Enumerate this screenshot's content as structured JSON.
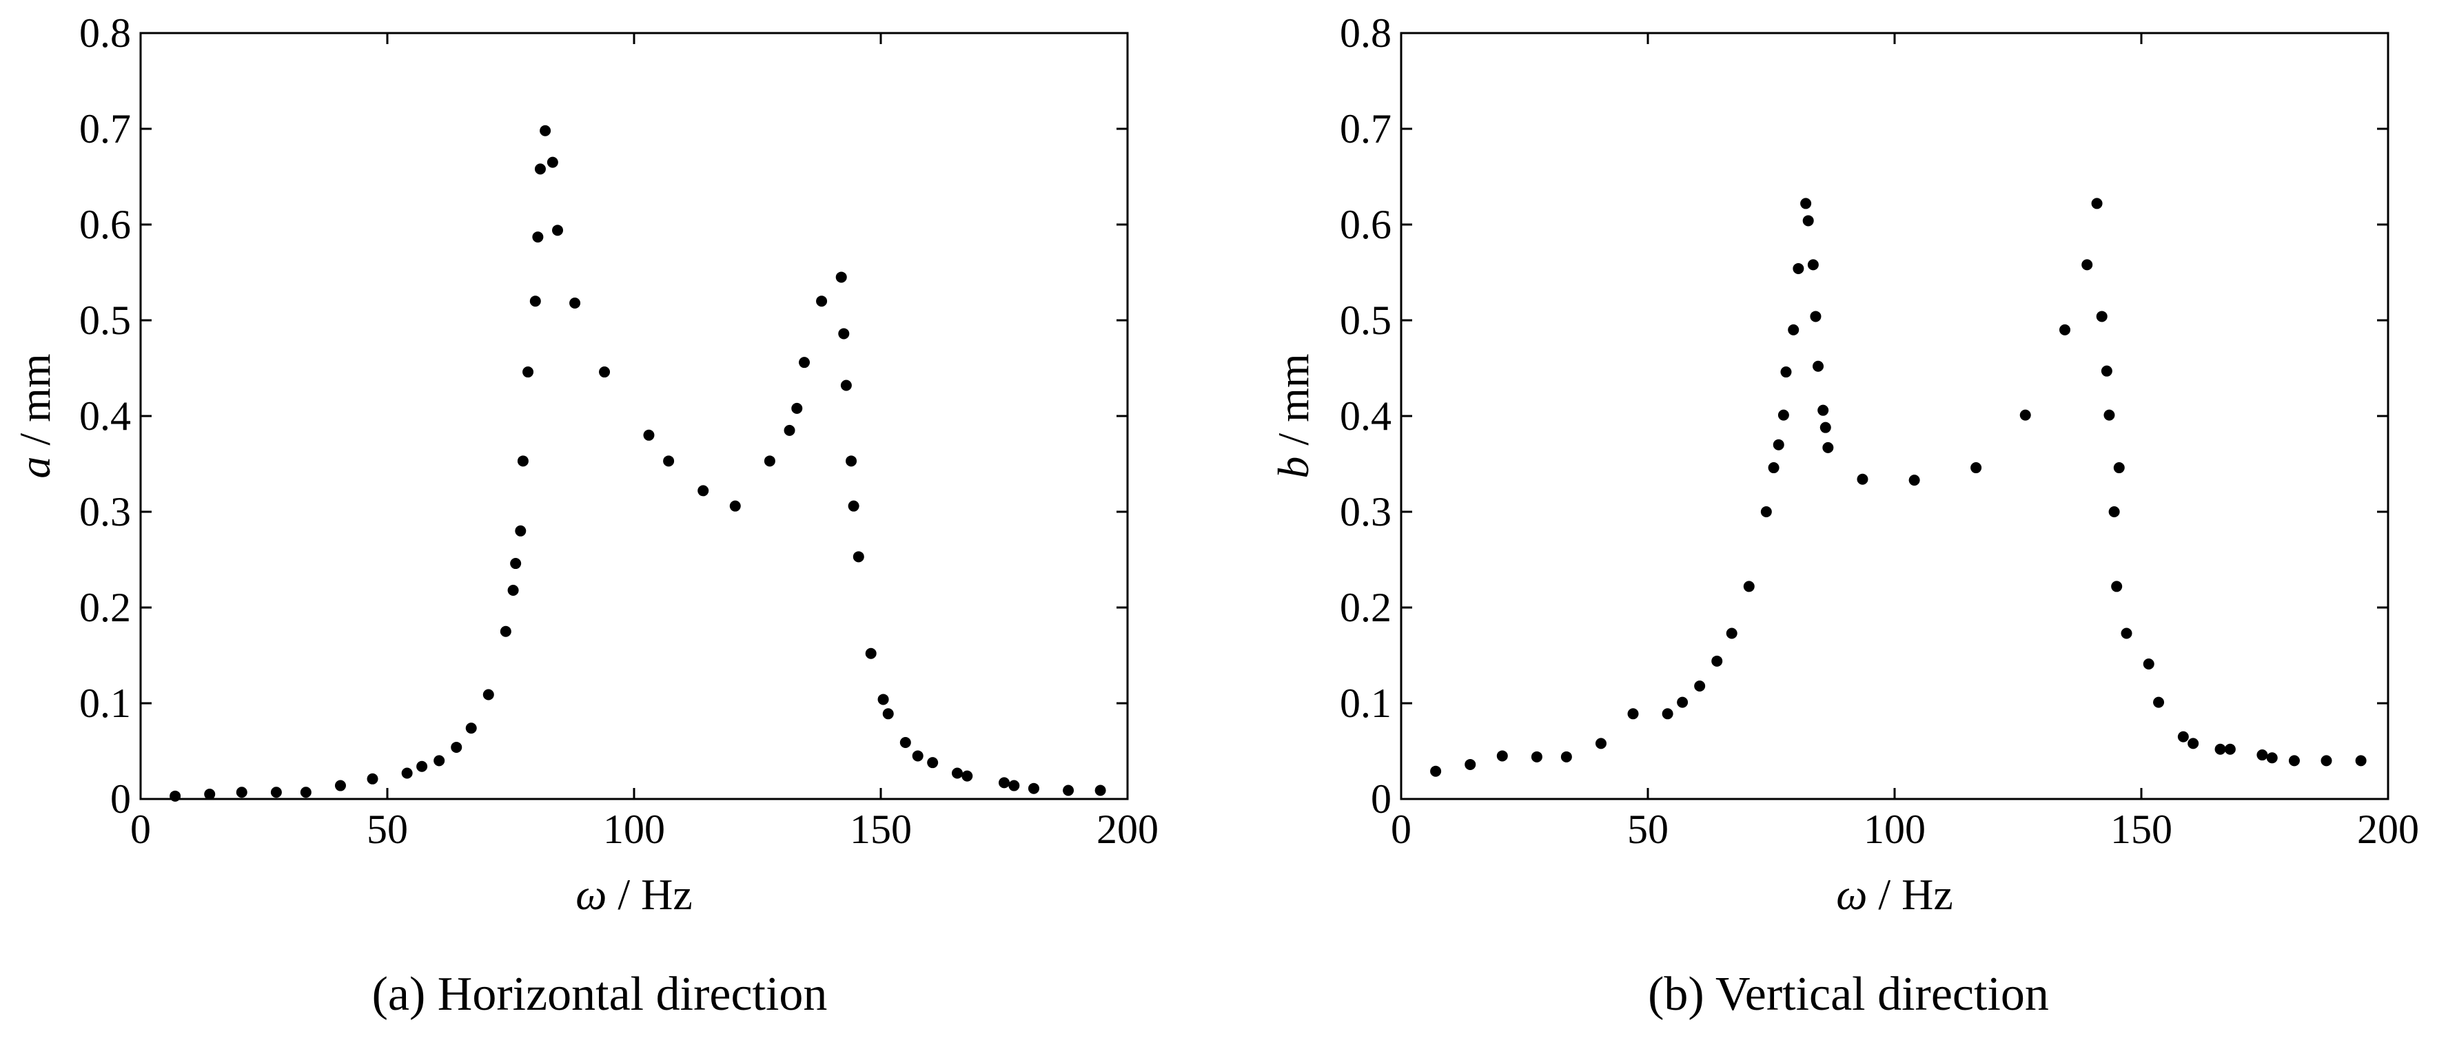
{
  "chart_data": [
    {
      "type": "scatter",
      "panel": "a",
      "caption": "(a) Horizontal direction",
      "xlabel_symbol": "ω",
      "xlabel_unit": " / Hz",
      "ylabel_symbol": "a",
      "ylabel_unit": " / mm",
      "xlim": [
        0,
        200
      ],
      "ylim": [
        0,
        0.8
      ],
      "xticks": [
        0,
        50,
        100,
        150,
        200
      ],
      "xtick_labels": [
        "0",
        "50",
        "100",
        "150",
        "200"
      ],
      "yticks": [
        0,
        0.1,
        0.2,
        0.3,
        0.4,
        0.5,
        0.6,
        0.7,
        0.8
      ],
      "ytick_labels": [
        "0",
        "0.1",
        "0.2",
        "0.3",
        "0.4",
        "0.5",
        "0.6",
        "0.7",
        "0.8"
      ],
      "grid": false,
      "points": [
        [
          7,
          0.003
        ],
        [
          14,
          0.005
        ],
        [
          20.5,
          0.007
        ],
        [
          27.5,
          0.007
        ],
        [
          33.5,
          0.007
        ],
        [
          40.5,
          0.014
        ],
        [
          47,
          0.021
        ],
        [
          54,
          0.027
        ],
        [
          57,
          0.034
        ],
        [
          60.5,
          0.04
        ],
        [
          64,
          0.054
        ],
        [
          67,
          0.074
        ],
        [
          70.5,
          0.109
        ],
        [
          74,
          0.175
        ],
        [
          75.5,
          0.218
        ],
        [
          76,
          0.246
        ],
        [
          77,
          0.28
        ],
        [
          77.5,
          0.353
        ],
        [
          78.5,
          0.446
        ],
        [
          80,
          0.52
        ],
        [
          80.5,
          0.587
        ],
        [
          81,
          0.658
        ],
        [
          82,
          0.698
        ],
        [
          83.5,
          0.665
        ],
        [
          84.5,
          0.594
        ],
        [
          88,
          0.518
        ],
        [
          94,
          0.446
        ],
        [
          103,
          0.38
        ],
        [
          107,
          0.353
        ],
        [
          114,
          0.322
        ],
        [
          120.5,
          0.306
        ],
        [
          127.5,
          0.353
        ],
        [
          131.5,
          0.385
        ],
        [
          133,
          0.408
        ],
        [
          134.5,
          0.456
        ],
        [
          138,
          0.52
        ],
        [
          142,
          0.545
        ],
        [
          142.5,
          0.486
        ],
        [
          143,
          0.432
        ],
        [
          144,
          0.353
        ],
        [
          144.5,
          0.306
        ],
        [
          145.5,
          0.253
        ],
        [
          148,
          0.152
        ],
        [
          150.5,
          0.104
        ],
        [
          151.5,
          0.089
        ],
        [
          155,
          0.059
        ],
        [
          157.5,
          0.045
        ],
        [
          160.5,
          0.038
        ],
        [
          165.5,
          0.027
        ],
        [
          167.5,
          0.024
        ],
        [
          175,
          0.017
        ],
        [
          177,
          0.014
        ],
        [
          181,
          0.011
        ],
        [
          188,
          0.009
        ],
        [
          194.5,
          0.009
        ]
      ]
    },
    {
      "type": "scatter",
      "panel": "b",
      "caption": "(b) Vertical direction",
      "xlabel_symbol": "ω",
      "xlabel_unit": " / Hz",
      "ylabel_symbol": "b",
      "ylabel_unit": " / mm",
      "xlim": [
        0,
        200
      ],
      "ylim": [
        0,
        0.8
      ],
      "xticks": [
        0,
        50,
        100,
        150,
        200
      ],
      "xtick_labels": [
        "0",
        "50",
        "100",
        "150",
        "200"
      ],
      "yticks": [
        0,
        0.1,
        0.2,
        0.3,
        0.4,
        0.5,
        0.6,
        0.7,
        0.8
      ],
      "ytick_labels": [
        "0",
        "0.1",
        "0.2",
        "0.3",
        "0.4",
        "0.5",
        "0.6",
        "0.7",
        "0.8"
      ],
      "grid": false,
      "points": [
        [
          7,
          0.029
        ],
        [
          14,
          0.036
        ],
        [
          20.5,
          0.045
        ],
        [
          27.5,
          0.044
        ],
        [
          33.5,
          0.044
        ],
        [
          40.5,
          0.058
        ],
        [
          47,
          0.089
        ],
        [
          54,
          0.089
        ],
        [
          57,
          0.101
        ],
        [
          60.5,
          0.118
        ],
        [
          64,
          0.144
        ],
        [
          67,
          0.173
        ],
        [
          70.5,
          0.222
        ],
        [
          74,
          0.3
        ],
        [
          75.5,
          0.346
        ],
        [
          76.5,
          0.37
        ],
        [
          77.5,
          0.401
        ],
        [
          78,
          0.446
        ],
        [
          79.5,
          0.49
        ],
        [
          80.5,
          0.554
        ],
        [
          82,
          0.622
        ],
        [
          82.5,
          0.604
        ],
        [
          83.5,
          0.558
        ],
        [
          84,
          0.504
        ],
        [
          84.5,
          0.452
        ],
        [
          85.5,
          0.406
        ],
        [
          86,
          0.388
        ],
        [
          86.5,
          0.367
        ],
        [
          93.5,
          0.334
        ],
        [
          104,
          0.333
        ],
        [
          116.5,
          0.346
        ],
        [
          126.5,
          0.401
        ],
        [
          134.5,
          0.49
        ],
        [
          139,
          0.558
        ],
        [
          141,
          0.622
        ],
        [
          142,
          0.504
        ],
        [
          143,
          0.447
        ],
        [
          143.5,
          0.401
        ],
        [
          144.5,
          0.3
        ],
        [
          145.5,
          0.346
        ],
        [
          145,
          0.222
        ],
        [
          147,
          0.173
        ],
        [
          151.5,
          0.141
        ],
        [
          153.5,
          0.101
        ],
        [
          158.5,
          0.065
        ],
        [
          160.5,
          0.058
        ],
        [
          166,
          0.052
        ],
        [
          168,
          0.052
        ],
        [
          174.5,
          0.046
        ],
        [
          176.5,
          0.043
        ],
        [
          181,
          0.04
        ],
        [
          187.5,
          0.04
        ],
        [
          194.5,
          0.04
        ]
      ]
    }
  ]
}
